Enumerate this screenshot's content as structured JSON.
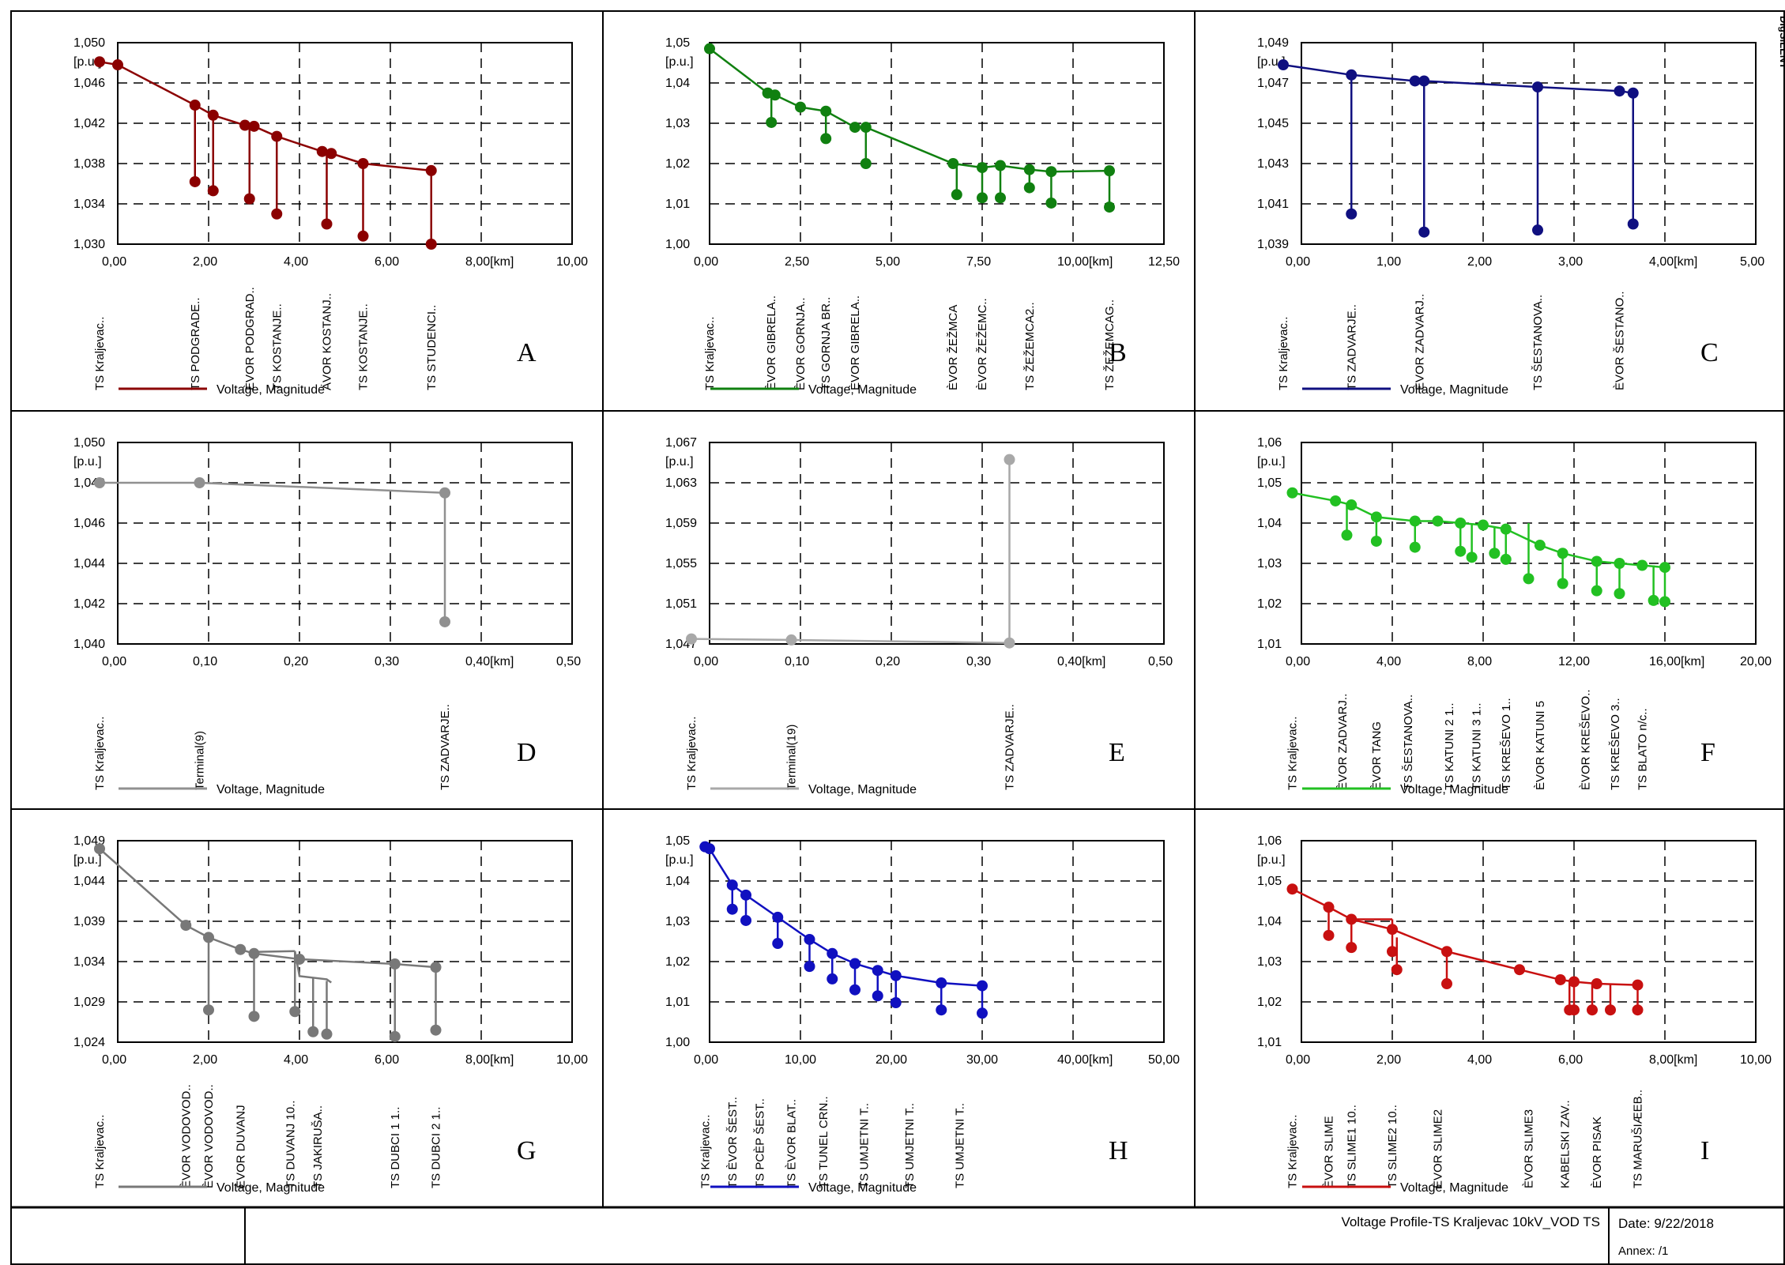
{
  "brand": "DIgSILENT",
  "footer": {
    "title": "Voltage Profile-TS Kraljevac 10kV_VOD TS",
    "date": "Date: 9/22/2018",
    "annex": "Annex:   /1"
  },
  "chart_data": [
    {
      "type": "line",
      "panel_letter": "A",
      "color": "#8b0000",
      "unit": "[p.u.]",
      "legend": "Voltage, Magnitude",
      "xlim": [
        0,
        10
      ],
      "ylim": [
        1.03,
        1.05
      ],
      "xticks": [
        "0,00",
        "2,00",
        "4,00",
        "6,00",
        "8,00[km]",
        "10,00"
      ],
      "yticks": [
        "1,030",
        "1,034",
        "1,038",
        "1,042",
        "1,046",
        "1,050"
      ],
      "main_line": [
        [
          -0.4,
          1.0481
        ],
        [
          0,
          1.0478
        ],
        [
          1.7,
          1.0438
        ],
        [
          2.1,
          1.0428
        ],
        [
          2.8,
          1.0418
        ],
        [
          3.0,
          1.0417
        ],
        [
          3.5,
          1.0407
        ],
        [
          4.5,
          1.0392
        ],
        [
          4.7,
          1.039
        ],
        [
          5.4,
          1.038
        ],
        [
          6.9,
          1.0373
        ]
      ],
      "drops": [
        [
          1.7,
          1.0438,
          1.0362
        ],
        [
          2.1,
          1.0428,
          1.0353
        ],
        [
          2.9,
          1.0418,
          1.0345
        ],
        [
          3.5,
          1.0407,
          1.033
        ],
        [
          4.6,
          1.0392,
          1.032
        ],
        [
          5.4,
          1.038,
          1.0308
        ],
        [
          6.9,
          1.0373,
          1.03
        ]
      ],
      "bus_labels": [
        [
          -0.4,
          "TS Kraljevac.."
        ],
        [
          1.7,
          "TS PODGRADE.."
        ],
        [
          2.9,
          "ÈVOR PODGRAD.."
        ],
        [
          3.5,
          "TS KOSTANJE.."
        ],
        [
          4.6,
          "ÄVOR KOSTANJ.."
        ],
        [
          5.4,
          "TS KOSTANJE.."
        ],
        [
          6.9,
          "TS STUDENCI.."
        ]
      ]
    },
    {
      "type": "line",
      "panel_letter": "B",
      "color": "#108010",
      "unit": "[p.u.]",
      "legend": "Voltage, Magnitude",
      "xlim": [
        0,
        12.5
      ],
      "ylim": [
        1.0,
        1.05
      ],
      "xticks": [
        "0,00",
        "2,50",
        "5,00",
        "7,50",
        "10,00[km]",
        "12,50"
      ],
      "yticks": [
        "1,00",
        "1,01",
        "1,02",
        "1,03",
        "1,04",
        "1,05"
      ],
      "main_line": [
        [
          0,
          1.0485
        ],
        [
          1.6,
          1.0375
        ],
        [
          1.8,
          1.037
        ],
        [
          2.5,
          1.034
        ],
        [
          3.2,
          1.033
        ],
        [
          4.0,
          1.029
        ],
        [
          4.3,
          1.029
        ],
        [
          6.7,
          1.02
        ],
        [
          7.5,
          1.019
        ],
        [
          8.0,
          1.0195
        ],
        [
          8.8,
          1.0185
        ],
        [
          9.4,
          1.018
        ],
        [
          11.0,
          1.0182
        ]
      ],
      "drops": [
        [
          1.7,
          1.0375,
          1.0302
        ],
        [
          3.2,
          1.0333,
          1.0262
        ],
        [
          4.3,
          1.029,
          1.02
        ],
        [
          6.8,
          1.02,
          1.0123
        ],
        [
          7.5,
          1.019,
          1.0115
        ],
        [
          8.0,
          1.0195,
          1.0115
        ],
        [
          8.8,
          1.0185,
          1.014
        ],
        [
          9.4,
          1.018,
          1.0102
        ],
        [
          11.0,
          1.0182,
          1.0092
        ]
      ],
      "bus_labels": [
        [
          0,
          "TS Kraljevac.."
        ],
        [
          1.7,
          "ÈVOR GIBRELA.."
        ],
        [
          2.5,
          "ÈVOR GORNJA.."
        ],
        [
          3.2,
          "TS GORNJA BR.."
        ],
        [
          4.0,
          "ÈVOR GIBRELA.."
        ],
        [
          6.7,
          "ÈVOR ŽEŽMCA"
        ],
        [
          7.5,
          "ÈVOR ŽEŽEMC.."
        ],
        [
          8.8,
          "TS ŽEŽEMCA2.."
        ],
        [
          11.0,
          "TS ŽEŽEMCAG.."
        ]
      ]
    },
    {
      "type": "line",
      "panel_letter": "C",
      "color": "#101080",
      "unit": "[p.u.]",
      "legend": "Voltage, Magnitude",
      "xlim": [
        0,
        5
      ],
      "ylim": [
        1.039,
        1.049
      ],
      "xticks": [
        "0,00",
        "1,00",
        "2,00",
        "3,00",
        "4,00[km]",
        "5,00"
      ],
      "yticks": [
        "1,039",
        "1,041",
        "1,043",
        "1,045",
        "1,047",
        "1,049"
      ],
      "main_line": [
        [
          -0.2,
          1.0479
        ],
        [
          0.55,
          1.0474
        ],
        [
          1.25,
          1.0471
        ],
        [
          1.35,
          1.0471
        ],
        [
          2.6,
          1.0468
        ],
        [
          3.5,
          1.0466
        ],
        [
          3.65,
          1.0465
        ]
      ],
      "drops": [
        [
          0.55,
          1.0474,
          1.0405
        ],
        [
          1.35,
          1.0471,
          1.0396
        ],
        [
          2.6,
          1.0468,
          1.0397
        ],
        [
          3.65,
          1.0465,
          1.04
        ]
      ],
      "bus_labels": [
        [
          -0.2,
          "TS Kraljevac.."
        ],
        [
          0.55,
          "TS ZADVARJE.."
        ],
        [
          1.3,
          "ÈVOR ZADVARJ.."
        ],
        [
          2.6,
          "TS ŠESTANOVA.."
        ],
        [
          3.5,
          "ÈVOR ŠESTANO.."
        ]
      ]
    },
    {
      "type": "line",
      "panel_letter": "D",
      "color": "#909090",
      "unit": "[p.u.]",
      "legend": "Voltage, Magnitude",
      "xlim": [
        0,
        0.5
      ],
      "ylim": [
        1.04,
        1.05
      ],
      "xticks": [
        "0,00",
        "0,10",
        "0,20",
        "0,30",
        "0,40[km]",
        "0,50"
      ],
      "yticks": [
        "1,040",
        "1,042",
        "1,044",
        "1,046",
        "1,048",
        "1,050"
      ],
      "main_line": [
        [
          -0.02,
          1.048
        ],
        [
          0.09,
          1.048
        ],
        [
          0.36,
          1.0475
        ]
      ],
      "drops": [
        [
          0.36,
          1.0475,
          1.0411
        ]
      ],
      "bus_labels": [
        [
          -0.02,
          "TS Kraljevac.."
        ],
        [
          0.09,
          "Terminal(9)"
        ],
        [
          0.36,
          "TS ZADVARJE.."
        ]
      ]
    },
    {
      "type": "line",
      "panel_letter": "E",
      "color": "#a8a8a8",
      "unit": "[p.u.]",
      "legend": "Voltage, Magnitude",
      "xlim": [
        0,
        0.5
      ],
      "ylim": [
        1.047,
        1.067
      ],
      "xticks": [
        "0,00",
        "0,10",
        "0,20",
        "0,30",
        "0,40[km]",
        "0,50"
      ],
      "yticks": [
        "1,047",
        "1,051",
        "1,055",
        "1,059",
        "1,063",
        "1,067"
      ],
      "main_line": [
        [
          -0.02,
          1.0475
        ],
        [
          0.09,
          1.0474
        ],
        [
          0.33,
          1.0471
        ]
      ],
      "drops": [
        [
          0.33,
          1.0471,
          1.0653
        ]
      ],
      "bus_labels": [
        [
          -0.02,
          "TS Kraljevac.."
        ],
        [
          0.09,
          "Terminal(19)"
        ],
        [
          0.33,
          "TS ZADVARJE.."
        ]
      ]
    },
    {
      "type": "line",
      "panel_letter": "F",
      "color": "#22c022",
      "unit": "[p.u.]",
      "legend": "Voltage, Magnitude",
      "xlim": [
        0,
        20
      ],
      "ylim": [
        1.01,
        1.06
      ],
      "xticks": [
        "0,00",
        "4,00",
        "8,00",
        "12,00",
        "16,00[km]",
        "20,00"
      ],
      "yticks": [
        "1,01",
        "1,02",
        "1,03",
        "1,04",
        "1,05",
        "1,06"
      ],
      "main_line": [
        [
          -0.4,
          1.0475
        ],
        [
          1.5,
          1.0455
        ],
        [
          2.2,
          1.0445
        ],
        [
          3.3,
          1.0415
        ],
        [
          5.0,
          1.0405
        ],
        [
          6.0,
          1.0405
        ],
        [
          7.0,
          1.04
        ],
        [
          8.0,
          1.0395
        ],
        [
          9.0,
          1.0385
        ],
        [
          10.5,
          1.0345
        ],
        [
          11.5,
          1.0325
        ],
        [
          13.0,
          1.0305
        ],
        [
          14.0,
          1.03
        ],
        [
          15.0,
          1.0295
        ],
        [
          16.0,
          1.029
        ]
      ],
      "drops": [
        [
          2.0,
          1.045,
          1.037
        ],
        [
          3.3,
          1.0415,
          1.0355
        ],
        [
          5.0,
          1.0405,
          1.034
        ],
        [
          7.0,
          1.04,
          1.033
        ],
        [
          7.5,
          1.0398,
          1.0315
        ],
        [
          8.5,
          1.039,
          1.0325
        ],
        [
          9.0,
          1.0385,
          1.031
        ],
        [
          10.0,
          1.04,
          1.0262
        ],
        [
          11.5,
          1.0325,
          1.025
        ],
        [
          13.0,
          1.0305,
          1.0232
        ],
        [
          14.0,
          1.03,
          1.0225
        ],
        [
          15.5,
          1.0295,
          1.0208
        ],
        [
          16.0,
          1.029,
          1.0205
        ]
      ],
      "bus_labels": [
        [
          -0.4,
          "TS Kraljevac.."
        ],
        [
          1.8,
          "ÈVOR ZADVARJ.."
        ],
        [
          3.3,
          "ÈVOR TANG"
        ],
        [
          4.7,
          "TS ŠESTANOVA.."
        ],
        [
          6.5,
          "TS KATUNI 2 1.."
        ],
        [
          7.7,
          "TS KATUNI 3 1.."
        ],
        [
          9.0,
          "TS KREŠEVO 1.."
        ],
        [
          10.5,
          "ÈVOR KATUNI 5"
        ],
        [
          12.5,
          "ÈVOR KREŠEVO.."
        ],
        [
          13.8,
          "TS KREŠEVO 3.."
        ],
        [
          15.0,
          "TS BLATO n/c.."
        ]
      ]
    },
    {
      "type": "line",
      "panel_letter": "G",
      "color": "#787878",
      "unit": "[p.u.]",
      "legend": "Voltage, Magnitude",
      "xlim": [
        0,
        10
      ],
      "ylim": [
        1.024,
        1.049
      ],
      "xticks": [
        "0,00",
        "2,00",
        "4,00",
        "6,00",
        "8,00[km]",
        "10,00"
      ],
      "yticks": [
        "1,024",
        "1,029",
        "1,034",
        "1,039",
        "1,044",
        "1,049"
      ],
      "main_line": [
        [
          -0.4,
          1.048
        ],
        [
          1.5,
          1.0385
        ],
        [
          2.0,
          1.037
        ],
        [
          2.7,
          1.0355
        ],
        [
          3.0,
          1.035
        ],
        [
          4.0,
          1.0343
        ],
        [
          6.1,
          1.0337
        ],
        [
          7.0,
          1.0333
        ]
      ],
      "extra_lines": [
        [
          [
            3.0,
            1.0352
          ],
          [
            3.9,
            1.0353
          ]
        ],
        [
          [
            3.9,
            1.0353
          ],
          [
            4.0,
            1.0322
          ],
          [
            4.6,
            1.0318
          ],
          [
            4.7,
            1.0314
          ]
        ]
      ],
      "drops": [
        [
          2.0,
          1.037,
          1.028
        ],
        [
          3.0,
          1.0352,
          1.0272
        ],
        [
          3.9,
          1.0353,
          1.0278
        ],
        [
          4.3,
          1.032,
          1.0253
        ],
        [
          4.6,
          1.0316,
          1.025
        ],
        [
          6.1,
          1.0337,
          1.0247
        ],
        [
          7.0,
          1.0333,
          1.0255
        ]
      ],
      "bus_labels": [
        [
          -0.4,
          "TS Kraljevac.."
        ],
        [
          1.5,
          "ÈVOR VODOVOD.."
        ],
        [
          2.0,
          "ÈVOR VODOVOD.."
        ],
        [
          2.7,
          "ÈVOR DUVANJ"
        ],
        [
          3.8,
          "TS DUVANJ 10.."
        ],
        [
          4.4,
          "TS JAKIRUŠA.."
        ],
        [
          6.1,
          "TS DUBCI 1 1.."
        ],
        [
          7.0,
          "TS DUBCI 2 1.."
        ]
      ]
    },
    {
      "type": "line",
      "panel_letter": "H",
      "color": "#1010c0",
      "unit": "[p.u.]",
      "legend": "Voltage, Magnitude",
      "xlim": [
        0,
        50
      ],
      "ylim": [
        1.0,
        1.05
      ],
      "xticks": [
        "0,00",
        "10,00",
        "20,00",
        "30,00",
        "40,00[km]",
        "50,00"
      ],
      "yticks": [
        "1,00",
        "1,01",
        "1,02",
        "1,03",
        "1,04",
        "1,05"
      ],
      "main_line": [
        [
          -0.5,
          1.0485
        ],
        [
          0,
          1.048
        ],
        [
          2.5,
          1.039
        ],
        [
          4.0,
          1.0365
        ],
        [
          7.5,
          1.031
        ],
        [
          11.0,
          1.0255
        ],
        [
          13.5,
          1.022
        ],
        [
          16.0,
          1.0195
        ],
        [
          18.5,
          1.0178
        ],
        [
          20.5,
          1.0165
        ],
        [
          25.5,
          1.0147
        ],
        [
          30.0,
          1.014
        ]
      ],
      "drops": [
        [
          2.5,
          1.039,
          1.033
        ],
        [
          4.0,
          1.0365,
          1.0302
        ],
        [
          7.5,
          1.031,
          1.0245
        ],
        [
          11.0,
          1.0255,
          1.0188
        ],
        [
          13.5,
          1.022,
          1.0157
        ],
        [
          16.0,
          1.0195,
          1.013
        ],
        [
          18.5,
          1.0178,
          1.0115
        ],
        [
          20.5,
          1.0165,
          1.0098
        ],
        [
          25.5,
          1.0147,
          1.008
        ],
        [
          30.0,
          1.014,
          1.0072
        ]
      ],
      "bus_labels": [
        [
          -0.5,
          "TS Kraljevac.."
        ],
        [
          2.5,
          "TS ÈVOR ŠEST.."
        ],
        [
          5.5,
          "TS PCÈP ŠEST.."
        ],
        [
          9.0,
          "TS ÈVOR BLAT.."
        ],
        [
          12.5,
          "TS TUNEL CRN.."
        ],
        [
          17.0,
          "TS UMJETNI T.."
        ],
        [
          22.0,
          "TS UMJETNI T.."
        ],
        [
          27.5,
          "TS UMJETNI T.."
        ]
      ]
    },
    {
      "type": "line",
      "panel_letter": "I",
      "color": "#c81010",
      "unit": "[p.u.]",
      "legend": "Voltage, Magnitude",
      "xlim": [
        0,
        10
      ],
      "ylim": [
        1.01,
        1.06
      ],
      "xticks": [
        "0,00",
        "2,00",
        "4,00",
        "6,00",
        "8,00[km]",
        "10,00"
      ],
      "yticks": [
        "1,01",
        "1,02",
        "1,03",
        "1,04",
        "1,05",
        "1,06"
      ],
      "main_line": [
        [
          -0.2,
          1.048
        ],
        [
          0.6,
          1.0435
        ],
        [
          1.1,
          1.0405
        ],
        [
          2.0,
          1.038
        ],
        [
          3.2,
          1.0325
        ],
        [
          4.8,
          1.028
        ],
        [
          5.7,
          1.0255
        ],
        [
          6.0,
          1.025
        ],
        [
          6.5,
          1.0245
        ],
        [
          7.4,
          1.0242
        ]
      ],
      "extra_lines": [
        [
          [
            1.1,
            1.0405
          ],
          [
            2.0,
            1.0405
          ]
        ]
      ],
      "drops": [
        [
          0.6,
          1.0435,
          1.0365
        ],
        [
          1.1,
          1.0405,
          1.0335
        ],
        [
          2.0,
          1.0405,
          1.0325
        ],
        [
          2.1,
          1.036,
          1.028
        ],
        [
          3.2,
          1.0325,
          1.0245
        ],
        [
          5.9,
          1.0255,
          1.018
        ],
        [
          6.0,
          1.025,
          1.018
        ],
        [
          6.4,
          1.0245,
          1.018
        ],
        [
          6.8,
          1.0245,
          1.018
        ],
        [
          7.4,
          1.0242,
          1.018
        ]
      ],
      "bus_labels": [
        [
          -0.2,
          "TS Kraljevac.."
        ],
        [
          0.6,
          "ÈVOR SLIME"
        ],
        [
          1.1,
          "TS SLIME1 10.."
        ],
        [
          2.0,
          "TS SLIME2 10.."
        ],
        [
          3.0,
          "ÈVOR SLIME2"
        ],
        [
          5.0,
          "ÈVOR SLIME3"
        ],
        [
          5.8,
          "KABELSKI ZAV.."
        ],
        [
          6.5,
          "ÈVOR PISAK"
        ],
        [
          7.4,
          "TS MARUŠIÆEB.."
        ]
      ]
    }
  ]
}
